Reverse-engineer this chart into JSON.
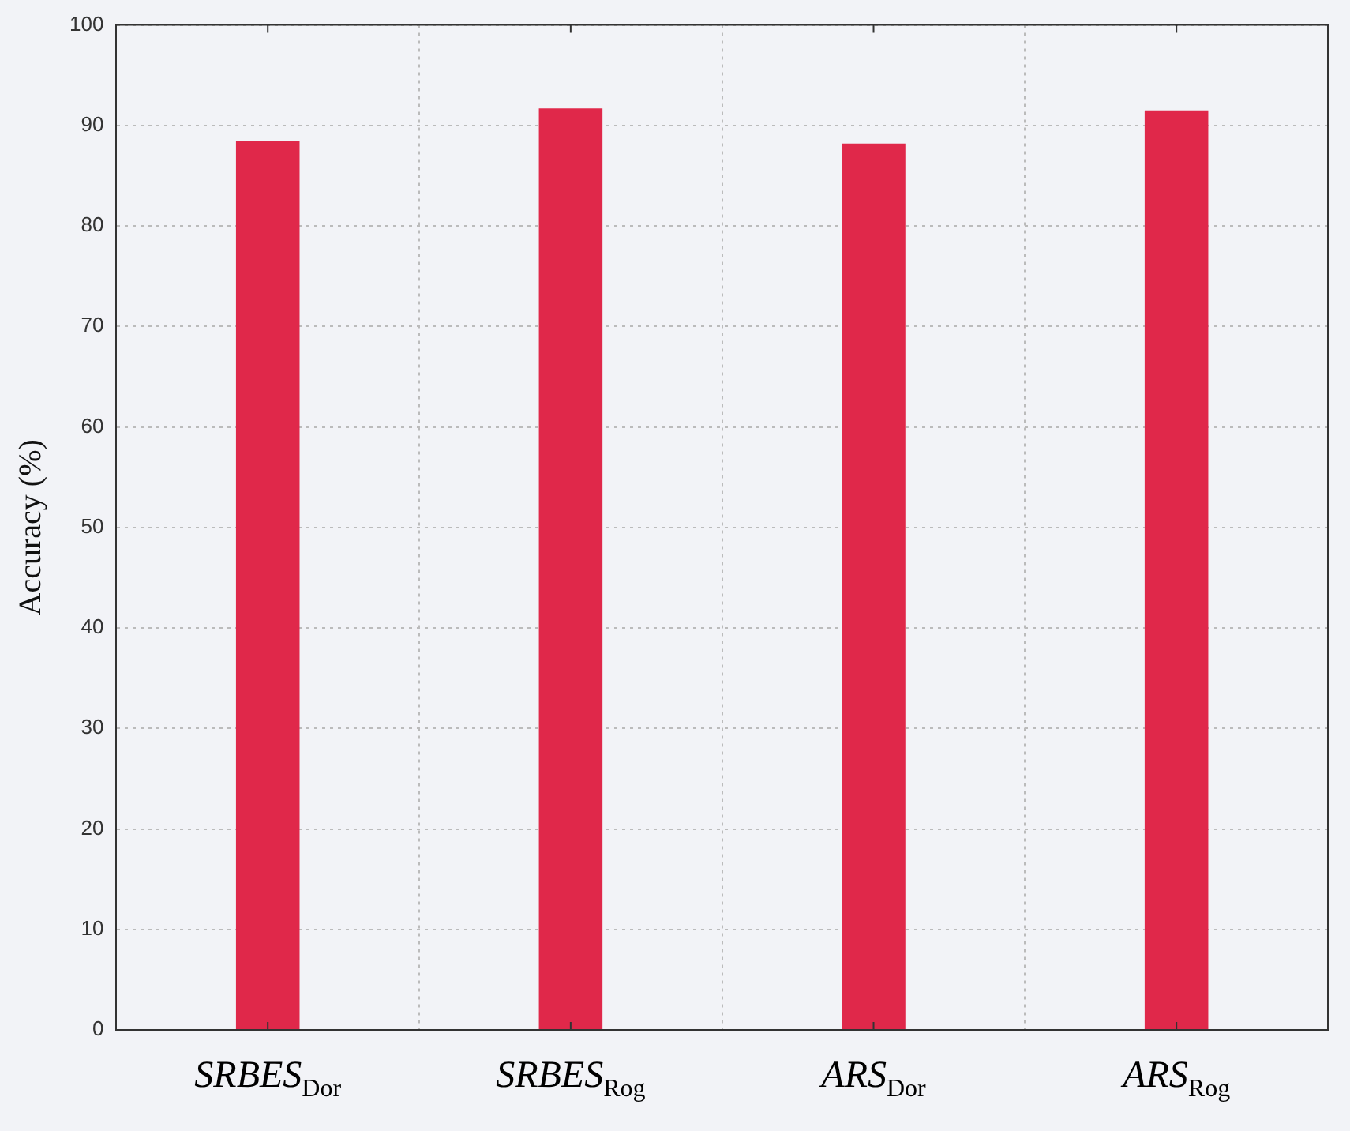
{
  "chart_data": {
    "type": "bar",
    "ylabel": "Accuracy (%)",
    "categories": [
      "SRBES$_{Dor}$",
      "SRBES$_{Rog}$",
      "ARS$_{Dor}$",
      "ARS$_{Rog}$"
    ],
    "values": [
      88.5,
      91.7,
      88.2,
      91.5
    ],
    "color": "#e0284a",
    "ylim": [
      0,
      100
    ],
    "yticks": [
      0,
      10,
      20,
      30,
      40,
      50,
      60,
      70,
      80,
      90,
      100
    ],
    "grid": true
  }
}
